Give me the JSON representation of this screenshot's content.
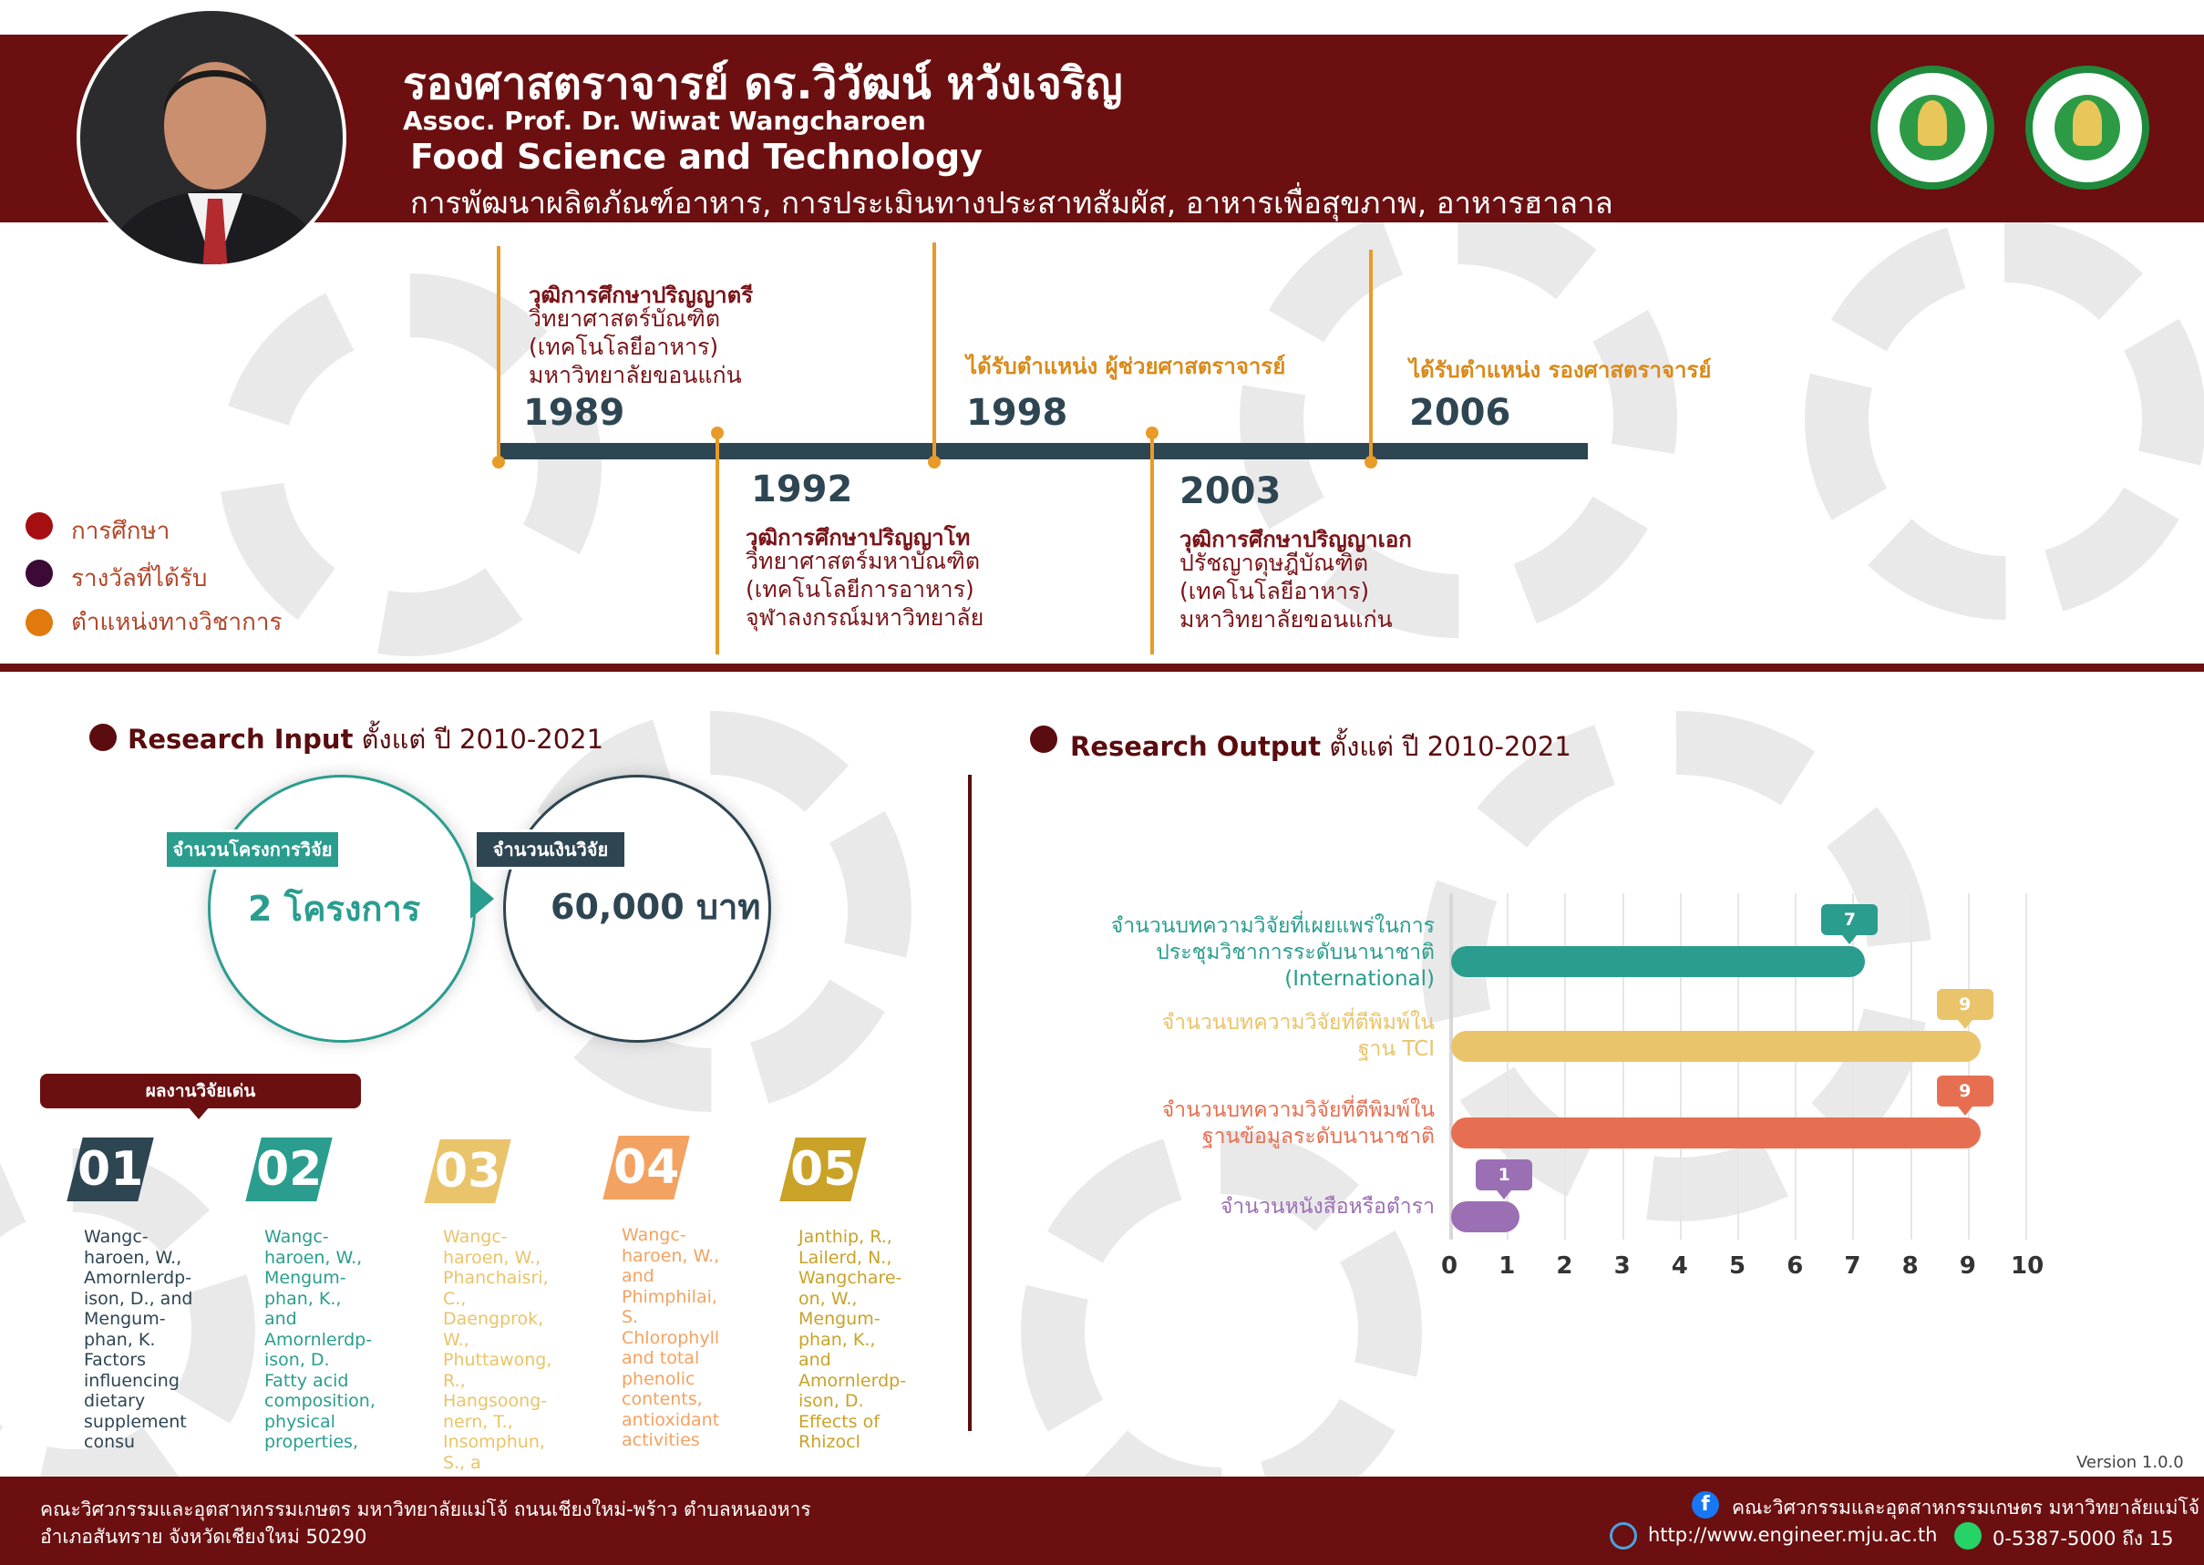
{
  "header": {
    "name_th": "รองศาสตราจารย์ ดร.วิวัฒน์ หวังเจริญ",
    "name_en": "Assoc. Prof. Dr. Wiwat Wangcharoen",
    "department": "Food Science and Technology",
    "interests": "การพัฒนาผลิตภัณฑ์อาหาร, การประเมินทางประสาทสัมผัส, อาหารเพื่อสุขภาพ, อาหารฮาลาล"
  },
  "timeline": [
    {
      "year": "1989",
      "title": "วุฒิการศึกษาปริญญาตรี",
      "lines": [
        "วิทยาศาสตร์บัณฑิต",
        "(เทคโนโลยีอาหาร)",
        "มหาวิทยาลัยขอนแก่น"
      ]
    },
    {
      "year": "1992",
      "title": "วุฒิการศึกษาปริญญาโท",
      "lines": [
        "วิทยาศาสตร์มหาบัณฑิต",
        "(เทคโนโลยีการอาหาร)",
        "จุฬาลงกรณ์มหาวิทยาลัย"
      ]
    },
    {
      "year": "1998",
      "title": "ได้รับตำแหน่ง ผู้ช่วยศาสตราจารย์"
    },
    {
      "year": "2003",
      "title": "วุฒิการศึกษาปริญญาเอก",
      "lines": [
        "ปรัชญาดุษฎีบัณฑิต",
        "(เทคโนโลยีอาหาร)",
        "มหาวิทยาลัยขอนแก่น"
      ]
    },
    {
      "year": "2006",
      "title": "ได้รับตำแหน่ง รองศาสตราจารย์"
    }
  ],
  "legend": [
    {
      "label": "การศึกษา",
      "color": "#a50f12"
    },
    {
      "label": "รางวัลที่ได้รับ",
      "color": "#3b0a35"
    },
    {
      "label": "ตำแหน่งทางวิชาการ",
      "color": "#e07a0c"
    }
  ],
  "research_input": {
    "title_bold": "Research Input",
    "title_rest": " ตั้งแต่ ปี 2010-2021",
    "projects_label": "จำนวนโครงการวิจัย",
    "projects_value": "2 โครงการ",
    "funding_label": "จำนวนเงินวิจัย",
    "funding_value": "60,000 บาท"
  },
  "highlights": {
    "label": "ผลงานวิจัยเด่น",
    "items": [
      {
        "num": "01",
        "color": "#2e4552",
        "text": "Wangc-haroen, W., Amornlerdp-ison, D., and Mengum-phan, K. Factors influencing dietary supplement consu"
      },
      {
        "num": "02",
        "color": "#2a9d8f",
        "text": "Wangc-haroen, W., Mengum-phan, K., and Amornlerdp-ison, D. Fatty acid composition, physical properties,"
      },
      {
        "num": "03",
        "color": "#e9c46a",
        "text": "Wangc-haroen, W., Phanchaisri, C., Daengprok, W., Phuttawong, R., Hangsoong-nern, T., Insomphun, S., a"
      },
      {
        "num": "04",
        "color": "#f4a261",
        "text": "Wangc-haroen, W., and Phimphilai, S. Chlorophyll and total phenolic contents, antioxidant activities"
      },
      {
        "num": "05",
        "color": "#c9a227",
        "text": "Janthip, R., Lailerd, N., Wangchare-on, W., Mengum-phan, K., and Amornlerdp-ison, D. Effects of Rhizocl"
      }
    ]
  },
  "research_output": {
    "title_bold": "Research Output",
    "title_rest": " ตั้งแต่ ปี 2010-2021"
  },
  "chart_data": {
    "type": "bar",
    "orientation": "horizontal",
    "categories": [
      "จำนวนบทความวิจัยที่เผยแพร่ในการประชุมวิชาการระดับนานาชาติ (International)",
      "จำนวนบทความวิจัยที่ตีพิมพ์ในฐาน TCI",
      "จำนวนบทความวิจัยที่ตีพิมพ์ในฐานข้อมูลระดับนานาชาติ",
      "จำนวนหนังสือหรือตำรา"
    ],
    "label_lines": [
      [
        "จำนวนบทความวิจัยที่เผยแพร่ในการ",
        "ประชุมวิชาการระดับนานาชาติ",
        "(International)"
      ],
      [
        "จำนวนบทความวิจัยที่ตีพิมพ์ใน",
        "ฐาน TCI"
      ],
      [
        "จำนวนบทความวิจัยที่ตีพิมพ์ใน",
        "ฐานข้อมูลระดับนานาชาติ"
      ],
      [
        "จำนวนหนังสือหรือตำรา"
      ]
    ],
    "values": [
      7,
      9,
      9,
      1
    ],
    "colors": [
      "#2a9d8f",
      "#e9c46a",
      "#e76f51",
      "#9b6fb3"
    ],
    "xlim": [
      0,
      10
    ],
    "xticks": [
      "0",
      "1",
      "2",
      "3",
      "4",
      "5",
      "6",
      "7",
      "8",
      "9",
      "10"
    ]
  },
  "version": "Version 1.0.0",
  "footer": {
    "address_1": "คณะวิศวกรรมและอุตสาหกรรมเกษตร มหาวิทยาลัยแม่โจ้ ถนนเชียงใหม่-พร้าว ตำบลหนองหาร",
    "address_2": "อำเภอสันทราย จังหวัดเชียงใหม่ 50290",
    "facebook": "คณะวิศวกรรมและอุตสาหกรรมเกษตร มหาวิทยาลัยแม่โจ้",
    "website": "http://www.engineer.mju.ac.th",
    "phone": "0-5387-5000 ถึง 15"
  }
}
